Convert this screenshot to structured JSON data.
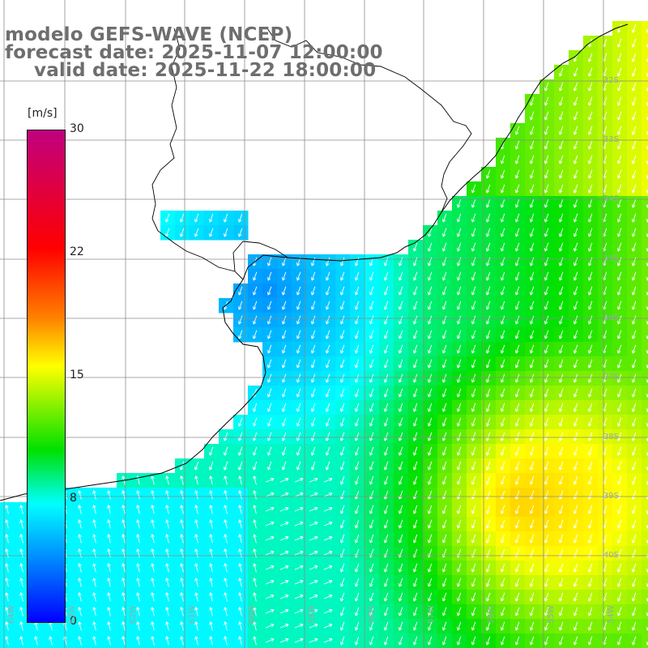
{
  "title": {
    "model": "modelo GEFS-WAVE (NCEP)",
    "forecast": "forecast date: 2025-11-07 12:00:00",
    "valid": "valid date: 2025-11-22 18:00:00"
  },
  "colorbar": {
    "unit": "[m/s]",
    "ticks": [
      "30",
      "22",
      "15",
      "8",
      "0"
    ],
    "colors": [
      "#0000ff",
      "#0080ff",
      "#00ffff",
      "#00e000",
      "#ffff00",
      "#ff8000",
      "#ff0000",
      "#c0007f"
    ]
  },
  "lat_labels": [
    "32S",
    "33S",
    "34S",
    "35S",
    "36S",
    "37S",
    "38S",
    "39S",
    "40S"
  ],
  "lon_labels": [
    "64W",
    "63W",
    "62W",
    "61W",
    "60W",
    "59W",
    "58W",
    "57W",
    "56W",
    "55W",
    "54W"
  ],
  "colors": {
    "land": "#ffffff",
    "grid": "#8c8c8c",
    "coast": "#000000",
    "arrow": "#ffffff",
    "title": "#6e6e6e"
  }
}
